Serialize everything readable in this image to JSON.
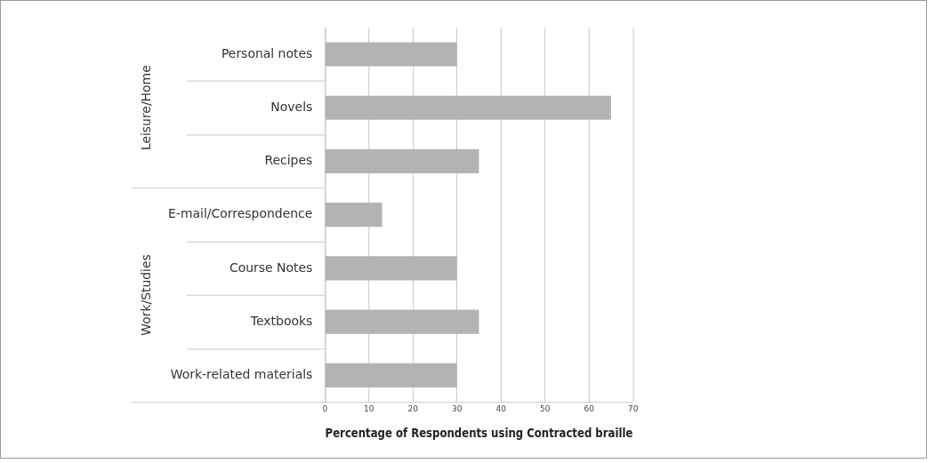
{
  "chart_data": {
    "type": "bar",
    "orientation": "horizontal",
    "xlabel": "Percentage of Respondents using Contracted braille",
    "categories": [
      "Personal notes",
      "Novels",
      "Recipes",
      "E-mail/Correspondence",
      "Course Notes",
      "Textbooks",
      "Work-related materials"
    ],
    "values": [
      30,
      65,
      35,
      13,
      30,
      35,
      30
    ],
    "color": "#b3b3b3",
    "xlim": [
      0,
      70
    ],
    "xticks": [
      0,
      10,
      20,
      30,
      40,
      50,
      60,
      70
    ],
    "grid": "x",
    "legend": false,
    "annotations": [
      "Leisure/Home",
      "Work/Studies"
    ]
  }
}
